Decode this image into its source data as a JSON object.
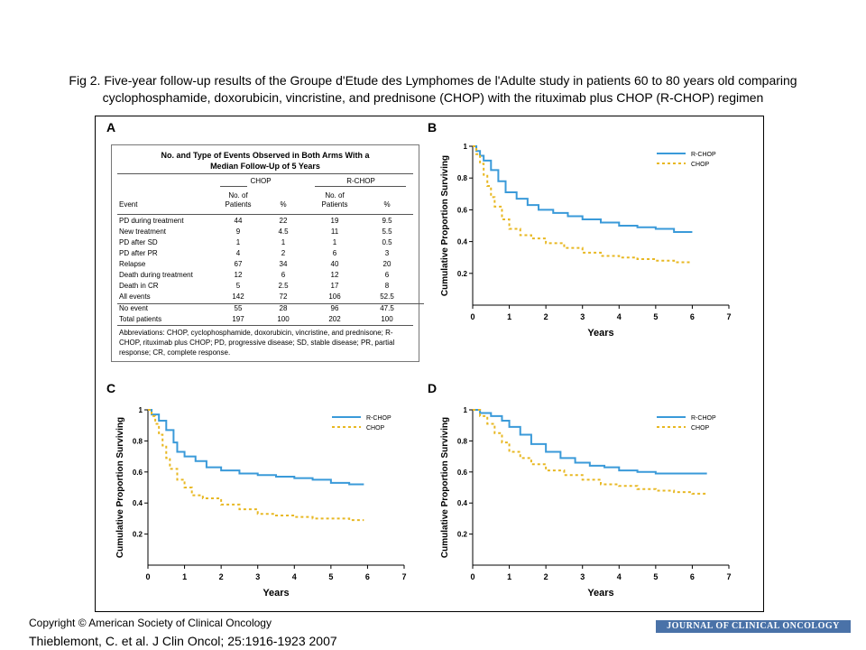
{
  "caption": {
    "line1": "Fig 2. Five-year follow-up results of the Groupe d'Etude des Lymphomes de l'Adulte study in patients 60 to 80 years old comparing",
    "line2": "cyclophosphamide, doxorubicin, vincristine, and prednisone (CHOP) with the rituximab plus CHOP (R-CHOP) regimen"
  },
  "panel_letters": {
    "a": "A",
    "b": "B",
    "c": "C",
    "d": "D"
  },
  "table": {
    "title_line1": "No. and Type of Events Observed in Both Arms With a",
    "title_line2": "Median Follow-Up of 5 Years",
    "group_chop": "CHOP",
    "group_rchop": "R-CHOP",
    "col_event": "Event",
    "col_no_line1": "No. of",
    "col_no_line2": "Patients",
    "col_pct": "%",
    "rows": [
      {
        "event": "PD during treatment",
        "chop_n": "44",
        "chop_pct": "22",
        "rchop_n": "19",
        "rchop_pct": "9.5"
      },
      {
        "event": "New treatment",
        "chop_n": "9",
        "chop_pct": "4.5",
        "rchop_n": "11",
        "rchop_pct": "5.5"
      },
      {
        "event": "PD after SD",
        "chop_n": "1",
        "chop_pct": "1",
        "rchop_n": "1",
        "rchop_pct": "0.5"
      },
      {
        "event": "PD after PR",
        "chop_n": "4",
        "chop_pct": "2",
        "rchop_n": "6",
        "rchop_pct": "3"
      },
      {
        "event": "Relapse",
        "chop_n": "67",
        "chop_pct": "34",
        "rchop_n": "40",
        "rchop_pct": "20"
      },
      {
        "event": "Death during treatment",
        "chop_n": "12",
        "chop_pct": "6",
        "rchop_n": "12",
        "rchop_pct": "6"
      },
      {
        "event": "Death in CR",
        "chop_n": "5",
        "chop_pct": "2.5",
        "rchop_n": "17",
        "rchop_pct": "8"
      },
      {
        "event": "All events",
        "chop_n": "142",
        "chop_pct": "72",
        "rchop_n": "106",
        "rchop_pct": "52.5"
      },
      {
        "event": "No event",
        "chop_n": "55",
        "chop_pct": "28",
        "rchop_n": "96",
        "rchop_pct": "47.5"
      },
      {
        "event": "Total patients",
        "chop_n": "197",
        "chop_pct": "100",
        "rchop_n": "202",
        "rchop_pct": "100"
      }
    ],
    "footnote": "Abbreviations: CHOP, cyclophosphamide, doxorubicin, vincristine, and prednisone; R-CHOP, rituximab plus CHOP; PD, progressive disease; SD, stable disease; PR, partial response; CR, complete response."
  },
  "chart_data": [
    {
      "panel": "B",
      "type": "line",
      "xlabel": "Years",
      "ylabel": "Cumulative Proportion Surviving",
      "xlim": [
        0,
        7
      ],
      "ylim": [
        0,
        1.0
      ],
      "xticks": [
        0,
        1,
        2,
        3,
        4,
        5,
        6,
        7
      ],
      "yticks": [
        0.2,
        0.4,
        0.6,
        0.8,
        1.0
      ],
      "grid": false,
      "legend": "top-right",
      "series": [
        {
          "name": "R-CHOP",
          "color": "#3a9ad9",
          "style": "solid",
          "x": [
            0,
            0.1,
            0.2,
            0.3,
            0.5,
            0.7,
            0.9,
            1.2,
            1.5,
            1.8,
            2.2,
            2.6,
            3.0,
            3.5,
            4.0,
            4.5,
            5.0,
            5.5,
            6.0
          ],
          "y": [
            1.0,
            0.97,
            0.94,
            0.91,
            0.85,
            0.78,
            0.71,
            0.67,
            0.63,
            0.6,
            0.58,
            0.56,
            0.54,
            0.52,
            0.5,
            0.49,
            0.48,
            0.46,
            0.46
          ]
        },
        {
          "name": "CHOP",
          "color": "#e8b823",
          "style": "dotted",
          "x": [
            0,
            0.1,
            0.2,
            0.3,
            0.4,
            0.5,
            0.6,
            0.8,
            1.0,
            1.3,
            1.6,
            2.0,
            2.5,
            3.0,
            3.5,
            4.0,
            4.5,
            5.0,
            5.5,
            6.0
          ],
          "y": [
            1.0,
            0.95,
            0.89,
            0.82,
            0.75,
            0.68,
            0.62,
            0.54,
            0.48,
            0.44,
            0.42,
            0.39,
            0.36,
            0.33,
            0.31,
            0.3,
            0.29,
            0.28,
            0.27,
            0.27
          ]
        }
      ]
    },
    {
      "panel": "C",
      "type": "line",
      "xlabel": "Years",
      "ylabel": "Cumulative Proportion Surviving",
      "xlim": [
        0,
        7
      ],
      "ylim": [
        0,
        1.0
      ],
      "xticks": [
        0,
        1,
        2,
        3,
        4,
        5,
        6,
        7
      ],
      "yticks": [
        0.2,
        0.4,
        0.6,
        0.8,
        1.0
      ],
      "grid": false,
      "legend": "top-right",
      "series": [
        {
          "name": "R-CHOP",
          "color": "#3a9ad9",
          "style": "solid",
          "x": [
            0,
            0.1,
            0.3,
            0.5,
            0.7,
            0.8,
            1.0,
            1.3,
            1.6,
            2.0,
            2.5,
            3.0,
            3.5,
            4.0,
            4.5,
            5.0,
            5.5,
            5.9
          ],
          "y": [
            1.0,
            0.97,
            0.93,
            0.87,
            0.79,
            0.73,
            0.7,
            0.67,
            0.63,
            0.61,
            0.59,
            0.58,
            0.57,
            0.56,
            0.55,
            0.53,
            0.52,
            0.52
          ]
        },
        {
          "name": "CHOP",
          "color": "#e8b823",
          "style": "dotted",
          "x": [
            0,
            0.1,
            0.2,
            0.3,
            0.4,
            0.5,
            0.6,
            0.8,
            1.0,
            1.2,
            1.5,
            2.0,
            2.5,
            3.0,
            3.5,
            4.0,
            4.5,
            5.0,
            5.5,
            5.9
          ],
          "y": [
            1.0,
            0.96,
            0.91,
            0.84,
            0.77,
            0.69,
            0.62,
            0.55,
            0.5,
            0.45,
            0.43,
            0.39,
            0.36,
            0.33,
            0.32,
            0.31,
            0.3,
            0.3,
            0.29,
            0.29
          ]
        }
      ]
    },
    {
      "panel": "D",
      "type": "line",
      "xlabel": "Years",
      "ylabel": "Cumulative Proportion Surviving",
      "xlim": [
        0,
        7
      ],
      "ylim": [
        0,
        1.0
      ],
      "xticks": [
        0,
        1,
        2,
        3,
        4,
        5,
        6,
        7
      ],
      "yticks": [
        0.2,
        0.4,
        0.6,
        0.8,
        1.0
      ],
      "grid": false,
      "legend": "top-right",
      "series": [
        {
          "name": "R-CHOP",
          "color": "#3a9ad9",
          "style": "solid",
          "x": [
            0,
            0.2,
            0.5,
            0.8,
            1.0,
            1.3,
            1.6,
            2.0,
            2.4,
            2.8,
            3.2,
            3.6,
            4.0,
            4.5,
            5.0,
            5.5,
            6.0,
            6.4
          ],
          "y": [
            1.0,
            0.98,
            0.96,
            0.93,
            0.89,
            0.84,
            0.78,
            0.73,
            0.69,
            0.66,
            0.64,
            0.63,
            0.61,
            0.6,
            0.59,
            0.59,
            0.59,
            0.59
          ]
        },
        {
          "name": "CHOP",
          "color": "#e8b823",
          "style": "dotted",
          "x": [
            0,
            0.2,
            0.4,
            0.6,
            0.8,
            1.0,
            1.3,
            1.6,
            2.0,
            2.5,
            3.0,
            3.5,
            4.0,
            4.5,
            5.0,
            5.5,
            6.0,
            6.4
          ],
          "y": [
            1.0,
            0.96,
            0.91,
            0.85,
            0.79,
            0.73,
            0.69,
            0.65,
            0.61,
            0.58,
            0.55,
            0.52,
            0.51,
            0.49,
            0.48,
            0.47,
            0.46,
            0.46
          ]
        }
      ]
    }
  ],
  "footer": {
    "copyright": "Copyright © American Society of Clinical Oncology",
    "citation": "Thieblemont, C. et al. J Clin Oncol; 25:1916-1923 2007",
    "journal": "JOURNAL OF CLINICAL ONCOLOGY"
  }
}
